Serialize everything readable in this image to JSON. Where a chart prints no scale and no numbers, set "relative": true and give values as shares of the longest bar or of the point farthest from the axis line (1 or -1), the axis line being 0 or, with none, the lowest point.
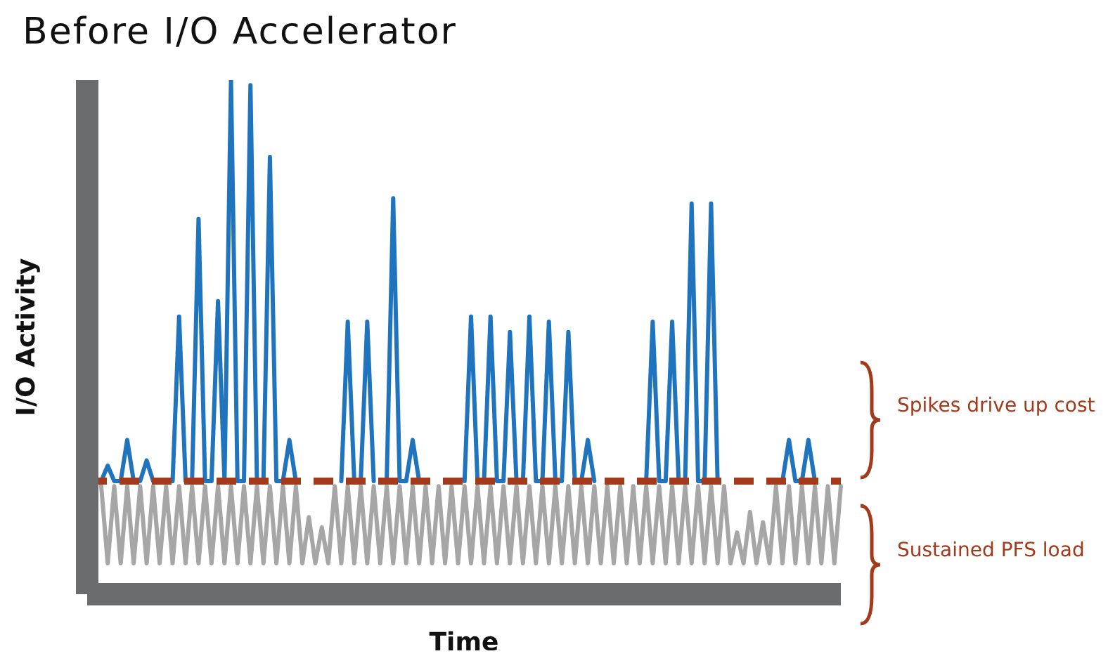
{
  "chart_data": {
    "type": "line",
    "title": "Before I/O Accelerator",
    "xlabel": "Time",
    "ylabel": "I/O Activity",
    "relative": true,
    "marker": "none",
    "categories": [
      null,
      null,
      null,
      null,
      null,
      null,
      null,
      null,
      null,
      null,
      null,
      null,
      null,
      null,
      null,
      null,
      null,
      null,
      null,
      null,
      null,
      null,
      null,
      null,
      null,
      null,
      null,
      null,
      null,
      null,
      null,
      null,
      null,
      null,
      null,
      null,
      null,
      null,
      null,
      null,
      null,
      null,
      null,
      null,
      null,
      null,
      null,
      null,
      null,
      null,
      null,
      null,
      null,
      null,
      null,
      null,
      null,
      null,
      null,
      null,
      null,
      null,
      null,
      null,
      null,
      null,
      null,
      null,
      null,
      null,
      null,
      null,
      null,
      null,
      null,
      null,
      null,
      null,
      null,
      null,
      null,
      null,
      null,
      null,
      null,
      null,
      null,
      null,
      null,
      null,
      null,
      null,
      null,
      null,
      null,
      null,
      null,
      null,
      null,
      null,
      null,
      null,
      null,
      null,
      null,
      null,
      null,
      null,
      null,
      null,
      null,
      null,
      null,
      null,
      null
    ],
    "series": [
      {
        "color": "#a6a6a6",
        "values": [
          0.21,
          0.06,
          0.21,
          0.06,
          0.21,
          0.06,
          0.21,
          0.06,
          0.21,
          0.06,
          0.21,
          0.06,
          0.21,
          0.06,
          0.21,
          0.06,
          0.21,
          0.06,
          0.21,
          0.06,
          0.21,
          0.06,
          0.21,
          0.06,
          0.21,
          0.06,
          0.21,
          0.06,
          0.21,
          0.06,
          0.21,
          0.06,
          0.15,
          0.06,
          0.13,
          0.06,
          0.21,
          0.06,
          0.21,
          0.06,
          0.21,
          0.06,
          0.21,
          0.06,
          0.21,
          0.06,
          0.21,
          0.06,
          0.21,
          0.06,
          0.21,
          0.06,
          0.21,
          0.06,
          0.21,
          0.06,
          0.21,
          0.06,
          0.21,
          0.06,
          0.21,
          0.06,
          0.21,
          0.06,
          0.21,
          0.06,
          0.21,
          0.06,
          0.21,
          0.06,
          0.21,
          0.06,
          0.21,
          0.06,
          0.21,
          0.06,
          0.21,
          0.06,
          0.21,
          0.06,
          0.21,
          0.06,
          0.21,
          0.06,
          0.21,
          0.06,
          0.21,
          0.06,
          0.21,
          0.06,
          0.21,
          0.06,
          0.21,
          0.06,
          0.21,
          0.06,
          0.21,
          0.06,
          0.12,
          0.06,
          0.16,
          0.06,
          0.14,
          0.06,
          0.21,
          0.06,
          0.21,
          0.06,
          0.21,
          0.06,
          0.21,
          0.06,
          0.21,
          0.06,
          0.21
        ]
      },
      {
        "color": "#1f74bd",
        "values": [
          0.22,
          0.25,
          0.22,
          0.22,
          0.3,
          0.22,
          0.22,
          0.26,
          0.22,
          null,
          null,
          0.22,
          0.54,
          0.22,
          0.22,
          0.73,
          0.22,
          0.22,
          0.57,
          0.22,
          1.0,
          0.22,
          0.22,
          0.99,
          0.22,
          0.22,
          0.85,
          0.22,
          0.22,
          0.3,
          0.22,
          null,
          null,
          null,
          null,
          null,
          null,
          0.22,
          0.53,
          0.22,
          0.22,
          0.53,
          0.22,
          null,
          0.22,
          0.77,
          0.22,
          0.22,
          0.3,
          0.22,
          null,
          null,
          null,
          null,
          null,
          null,
          0.22,
          0.54,
          0.22,
          0.22,
          0.54,
          0.22,
          0.22,
          0.51,
          0.22,
          0.22,
          0.54,
          0.22,
          0.22,
          0.53,
          0.22,
          0.22,
          0.51,
          0.22,
          0.22,
          0.3,
          0.22,
          null,
          null,
          null,
          null,
          null,
          null,
          null,
          0.22,
          0.53,
          0.22,
          0.22,
          0.53,
          0.22,
          0.22,
          0.76,
          0.22,
          0.22,
          0.76,
          0.22,
          null,
          null,
          null,
          null,
          null,
          null,
          null,
          null,
          null,
          0.22,
          0.3,
          0.22,
          0.22,
          0.3,
          0.22,
          null,
          null,
          null,
          null
        ]
      }
    ],
    "ref_lines": [
      {
        "axis": "y",
        "value": 0.22,
        "color": "#a33a1c",
        "line_style": "dashed"
      }
    ],
    "annotations": [
      "Spikes drive up cost",
      "Sustained PFS load"
    ]
  }
}
